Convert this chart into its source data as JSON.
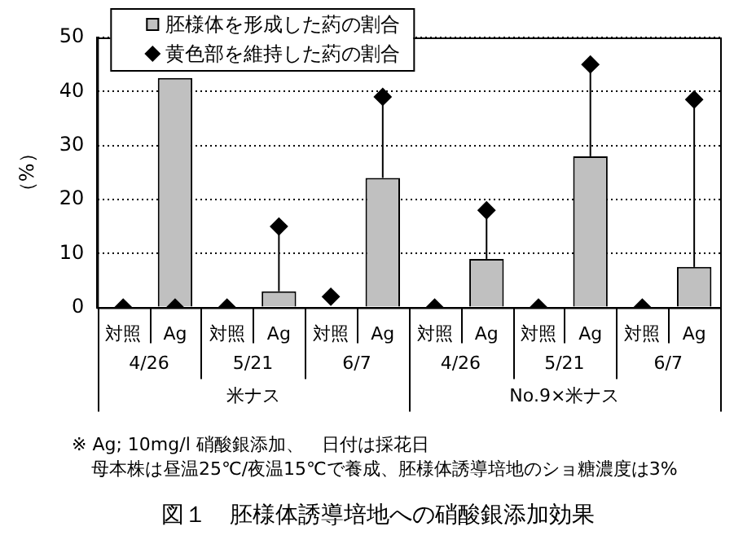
{
  "chart_data": {
    "type": "bar",
    "title": "図１　胚様体誘導培地への硝酸銀添加効果",
    "ylabel": "（%）",
    "categories": [
      "対照",
      "Ag",
      "対照",
      "Ag",
      "対照",
      "Ag",
      "対照",
      "Ag",
      "対照",
      "Ag",
      "対照",
      "Ag"
    ],
    "series": [
      {
        "name": "胚様体を形成した葯の割合",
        "color": "#c0c0c0",
        "values": [
          0,
          42.5,
          0,
          3,
          0,
          24,
          0,
          9,
          0,
          28,
          0,
          7.5
        ],
        "errors": [
          null,
          null,
          null,
          [
            3,
            15
          ],
          null,
          [
            24,
            39
          ],
          null,
          [
            9,
            18
          ],
          null,
          [
            28,
            45
          ],
          null,
          [
            7.5,
            38.5
          ]
        ]
      },
      {
        "name": "黄色部を維持した葯の割合",
        "type": "scatter",
        "color": "#000000",
        "marker": "diamond",
        "values": [
          0,
          0,
          0,
          15,
          2,
          39,
          0,
          18,
          0,
          45,
          0,
          38.5
        ]
      }
    ],
    "annotations": [
      "4/26",
      "5/21",
      "6/7",
      "4/26",
      "5/21",
      "6/7",
      "米ナス",
      "No.9×米ナス",
      "※ Ag; 10mg/l 硝酸銀添加、　日付は採花日",
      "母本株は昼温25℃/夜温15℃で養成、胚様体誘導培地のショ糖濃度は3%"
    ],
    "ylim": [
      0,
      50
    ],
    "yticks": [
      0,
      10,
      20,
      30,
      40,
      50
    ],
    "grid": "y",
    "legend": "top left"
  }
}
